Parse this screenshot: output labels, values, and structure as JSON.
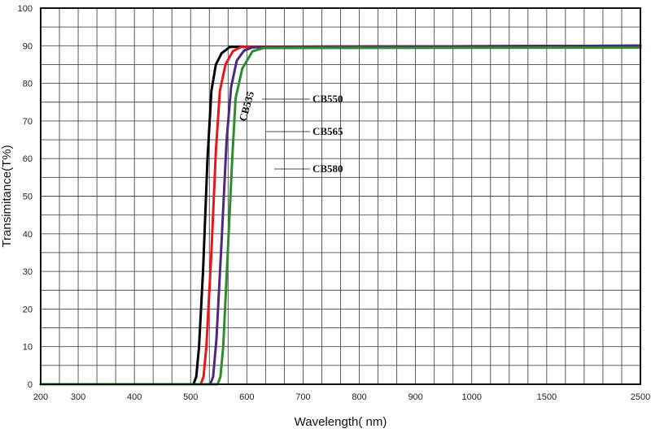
{
  "chart_data": {
    "type": "line",
    "xlabel": "Wavelength( nm)",
    "ylabel": "Transimitance(T%)",
    "x_tick_labels": [
      "200",
      "300",
      "400",
      "500",
      "600",
      "700",
      "800",
      "900",
      "1000",
      "1500",
      "2500"
    ],
    "y_tick_labels": [
      "0",
      "10",
      "20",
      "30",
      "40",
      "50",
      "60",
      "70",
      "80",
      "90",
      "100"
    ],
    "ylim": [
      0,
      100
    ],
    "grid": true,
    "legend": "none",
    "series": [
      {
        "name": "CB535",
        "color": "#000000",
        "points": [
          [
            200,
            0
          ],
          [
            505,
            0
          ],
          [
            510,
            2
          ],
          [
            515,
            10
          ],
          [
            522,
            30
          ],
          [
            530,
            60
          ],
          [
            537,
            78
          ],
          [
            545,
            85
          ],
          [
            555,
            88
          ],
          [
            570,
            89.7
          ],
          [
            2500,
            90
          ]
        ]
      },
      {
        "name": "CB550",
        "color": "#e8161b",
        "points": [
          [
            200,
            0
          ],
          [
            518,
            0
          ],
          [
            523,
            2
          ],
          [
            528,
            10
          ],
          [
            537,
            35
          ],
          [
            545,
            62
          ],
          [
            552,
            78
          ],
          [
            562,
            85
          ],
          [
            575,
            88.5
          ],
          [
            590,
            89.7
          ],
          [
            2500,
            90
          ]
        ]
      },
      {
        "name": "CB565",
        "color": "#4b2a7b",
        "points": [
          [
            200,
            0
          ],
          [
            535,
            0
          ],
          [
            540,
            2
          ],
          [
            546,
            12
          ],
          [
            555,
            38
          ],
          [
            564,
            65
          ],
          [
            572,
            79
          ],
          [
            582,
            86
          ],
          [
            595,
            88.7
          ],
          [
            610,
            89.6
          ],
          [
            2500,
            90
          ]
        ]
      },
      {
        "name": "CB580",
        "color": "#2e8b2e",
        "points": [
          [
            200,
            0
          ],
          [
            548,
            0
          ],
          [
            553,
            2
          ],
          [
            558,
            10
          ],
          [
            566,
            35
          ],
          [
            574,
            60
          ],
          [
            580,
            76
          ],
          [
            592,
            84
          ],
          [
            610,
            88.5
          ],
          [
            630,
            89.4
          ],
          [
            2500,
            89.5
          ]
        ]
      }
    ],
    "annotations": [
      {
        "text": "CB535",
        "series": "CB535"
      },
      {
        "text": "CB550",
        "series": "CB550"
      },
      {
        "text": "CB565",
        "series": "CB565"
      },
      {
        "text": "CB580",
        "series": "CB580"
      }
    ]
  }
}
